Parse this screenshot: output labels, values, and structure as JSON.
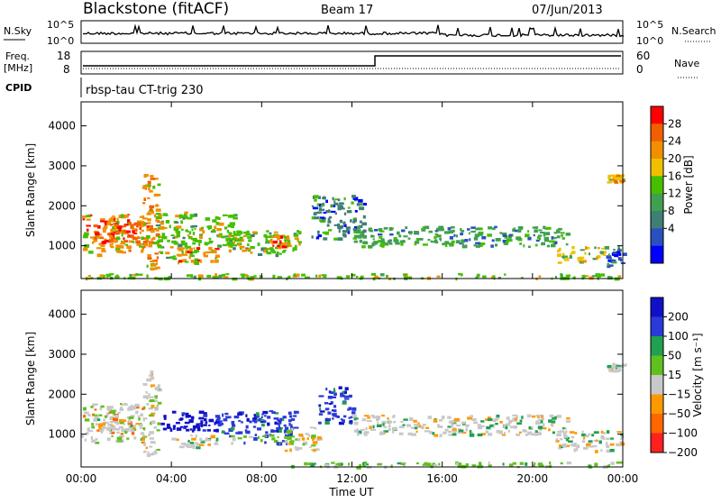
{
  "header": {
    "site": "Blackstone (fitACF)",
    "beam": "Beam 17",
    "date": "07/Jun/2013"
  },
  "strip": {
    "nsky_label": "N.Sky",
    "nsky_ticks": [
      "10^5",
      "10^0"
    ],
    "nsearch_label": "N.Search",
    "nsearch_ticks": [
      "10^5",
      "10^0"
    ],
    "freq_label": "Freq.",
    "freq_unit": "[MHz]",
    "freq_ticks": [
      "18",
      "8"
    ],
    "nave_label": "Nave",
    "nave_ticks": [
      "60",
      "0"
    ],
    "cpid_label": "CPID",
    "cpid_text": "rbsp-tau CT-trig 230"
  },
  "colors": {
    "power": [
      "#0000ff",
      "#2a50c0",
      "#3f7f75",
      "#40a050",
      "#44c000",
      "#f0c000",
      "#f09000",
      "#f06000",
      "#ff0000"
    ],
    "velocity": [
      "#1010c8",
      "#2a3ad8",
      "#20a050",
      "#60c020",
      "#c8c8c8",
      "#ff9900",
      "#ff6600",
      "#ff2020"
    ]
  },
  "chart_data": [
    {
      "type": "heatmap",
      "panel": "power",
      "title": "Blackstone (fitACF) Beam 17 07/Jun/2013",
      "xlabel": "",
      "ylabel": "Slant Range [km]",
      "x_ticks": [
        "00:00",
        "04:00",
        "08:00",
        "12:00",
        "16:00",
        "20:00",
        "00:00"
      ],
      "y_ticks": [
        1000,
        2000,
        3000,
        4000
      ],
      "xlim_hours": [
        0,
        24
      ],
      "ylim_km": [
        180,
        4600
      ],
      "colorbar": {
        "label": "Power [dB]",
        "ticks": [
          "28",
          "24",
          "20",
          "16",
          "12",
          "8",
          "4"
        ],
        "range": [
          0,
          30
        ]
      },
      "regions": [
        {
          "t": [
            0.0,
            2.8
          ],
          "r": [
            800,
            1800
          ],
          "value": 22
        },
        {
          "t": [
            0.5,
            3.0
          ],
          "r": [
            1100,
            1600
          ],
          "value": 26
        },
        {
          "t": [
            2.7,
            3.4
          ],
          "r": [
            400,
            2800
          ],
          "value": 20
        },
        {
          "t": [
            3.3,
            5.0
          ],
          "r": [
            700,
            1900
          ],
          "value": 14
        },
        {
          "t": [
            4.0,
            6.0
          ],
          "r": [
            600,
            1000
          ],
          "value": 22
        },
        {
          "t": [
            5.0,
            6.8
          ],
          "r": [
            1000,
            1800
          ],
          "value": 16
        },
        {
          "t": [
            6.5,
            9.8
          ],
          "r": [
            800,
            1400
          ],
          "value": 14
        },
        {
          "t": [
            8.2,
            9.2
          ],
          "r": [
            1000,
            1300
          ],
          "value": 22
        },
        {
          "t": [
            10.2,
            12.5
          ],
          "r": [
            1200,
            2300
          ],
          "value": 8
        },
        {
          "t": [
            12.0,
            21.5
          ],
          "r": [
            1000,
            1500
          ],
          "value": 10
        },
        {
          "t": [
            21.0,
            23.2
          ],
          "r": [
            600,
            1000
          ],
          "value": 17
        },
        {
          "t": [
            23.2,
            24.0
          ],
          "r": [
            500,
            1000
          ],
          "value": 6
        },
        {
          "t": [
            23.3,
            24.0
          ],
          "r": [
            2600,
            2800
          ],
          "value": 18
        },
        {
          "t": [
            0.0,
            24.0
          ],
          "r": [
            200,
            320
          ],
          "value": 16
        }
      ]
    },
    {
      "type": "heatmap",
      "panel": "velocity",
      "xlabel": "Time UT",
      "ylabel": "Slant Range [km]",
      "x_ticks": [
        "00:00",
        "04:00",
        "08:00",
        "12:00",
        "16:00",
        "20:00",
        "00:00"
      ],
      "y_ticks": [
        1000,
        2000,
        3000,
        4000
      ],
      "xlim_hours": [
        0,
        24
      ],
      "ylim_km": [
        180,
        4600
      ],
      "colorbar": {
        "label": "Velocity [m s⁻¹]",
        "ticks": [
          "200",
          "100",
          "50",
          "15",
          "−15",
          "−50",
          "−100",
          "−200"
        ],
        "range": [
          -250,
          250
        ]
      },
      "regions": [
        {
          "t": [
            0.0,
            2.8
          ],
          "r": [
            800,
            1800
          ],
          "value": -60
        },
        {
          "t": [
            0.5,
            2.5
          ],
          "r": [
            1100,
            1400
          ],
          "value": 0
        },
        {
          "t": [
            2.7,
            3.4
          ],
          "r": [
            500,
            2600
          ],
          "value": -40
        },
        {
          "t": [
            3.5,
            6.0
          ],
          "r": [
            1100,
            1600
          ],
          "value": 220
        },
        {
          "t": [
            4.0,
            6.0
          ],
          "r": [
            700,
            1000
          ],
          "value": 0
        },
        {
          "t": [
            6.0,
            9.5
          ],
          "r": [
            1000,
            1600
          ],
          "value": 180
        },
        {
          "t": [
            6.5,
            9.5
          ],
          "r": [
            800,
            1000
          ],
          "value": 60
        },
        {
          "t": [
            9.0,
            10.5
          ],
          "r": [
            600,
            1200
          ],
          "value": -50
        },
        {
          "t": [
            10.5,
            12.0
          ],
          "r": [
            1300,
            2200
          ],
          "value": 150
        },
        {
          "t": [
            12.0,
            21.5
          ],
          "r": [
            1000,
            1500
          ],
          "value": 0
        },
        {
          "t": [
            21.0,
            24.0
          ],
          "r": [
            600,
            1100
          ],
          "value": 0
        },
        {
          "t": [
            23.3,
            24.0
          ],
          "r": [
            2600,
            2800
          ],
          "value": 0
        },
        {
          "t": [
            9.0,
            24.0
          ],
          "r": [
            200,
            320
          ],
          "value": 30
        }
      ]
    }
  ]
}
